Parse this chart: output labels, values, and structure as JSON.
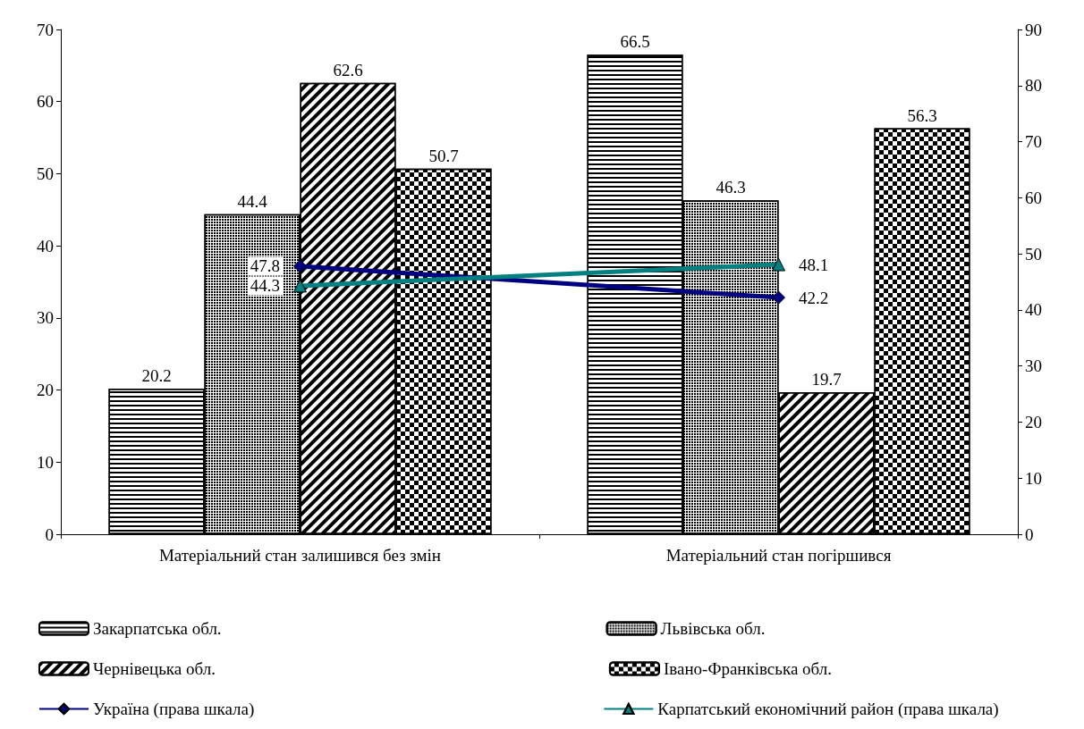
{
  "chart_data": {
    "type": "bar",
    "categories": [
      "Матеріальний стан залишився без змін",
      "Матеріальний стан погіршився"
    ],
    "series": [
      {
        "name": "Закарпатська обл.",
        "color": "#ffffff",
        "values": [
          20.2,
          66.5
        ]
      },
      {
        "name": "Львівська обл.",
        "color": "#ffffff",
        "values": [
          44.4,
          46.3
        ]
      },
      {
        "name": "Чернівецька обл.",
        "color": "#ffffff",
        "values": [
          62.6,
          19.7
        ]
      },
      {
        "name": "Івано-Франківська обл.",
        "color": "#ffffff",
        "values": [
          50.7,
          56.3
        ]
      },
      {
        "name": "Україна (права шкала)",
        "type": "line",
        "axis": "y2",
        "color": "#000080",
        "marker": "diamond",
        "values": [
          47.8,
          42.2
        ]
      },
      {
        "name": "Карпатський економічний район (права шкала)",
        "type": "line",
        "axis": "y2",
        "color": "#008080",
        "marker": "triangle",
        "values": [
          44.3,
          48.1
        ]
      }
    ],
    "ylim": [
      0,
      70
    ],
    "yticks": [
      0,
      10,
      20,
      30,
      40,
      50,
      60,
      70
    ],
    "y2lim": [
      0,
      90
    ],
    "y2ticks": [
      0,
      10,
      20,
      30,
      40,
      50,
      60,
      70,
      80,
      90
    ],
    "data_labels": true,
    "grid": false,
    "legend": "bottom"
  }
}
